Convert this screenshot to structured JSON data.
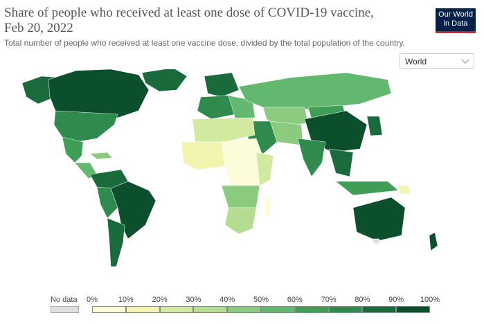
{
  "header": {
    "title": "Share of people who received at least one dose of COVID-19 vaccine, Feb 20, 2022",
    "subtitle": "Total number of people who received at least one vaccine dose, divided by the total population of the country.",
    "logo_line1": "Our World",
    "logo_line2": "in Data"
  },
  "region_selector": {
    "value": "World",
    "icon": "chevron-down-icon"
  },
  "map": {
    "no_data_color": "#e0e0e0",
    "scale_colors": [
      "#fcfcd9",
      "#f2f4b0",
      "#d2eaa0",
      "#b4dd92",
      "#8bcb80",
      "#63b870",
      "#3f9e56",
      "#2e8a4d",
      "#1a6b3c",
      "#0c4f2c"
    ]
  },
  "legend": {
    "no_data_label": "No data",
    "labels": [
      "0%",
      "10%",
      "20%",
      "30%",
      "40%",
      "50%",
      "60%",
      "70%",
      "80%",
      "90%",
      "100%"
    ]
  }
}
